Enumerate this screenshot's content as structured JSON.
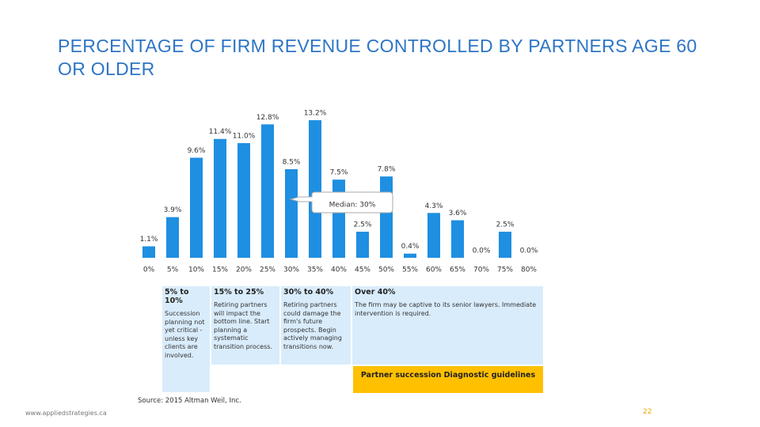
{
  "chart_data": {
    "type": "bar",
    "title": "PERCENTAGE OF FIRM REVENUE CONTROLLED BY PARTNERS AGE 60 OR OLDER",
    "categories": [
      "0%",
      "5%",
      "10%",
      "15%",
      "20%",
      "25%",
      "30%",
      "35%",
      "40%",
      "45%",
      "50%",
      "55%",
      "60%",
      "65%",
      "70%",
      "75%",
      "80%"
    ],
    "values": [
      1.1,
      3.9,
      9.6,
      11.4,
      11.0,
      12.8,
      8.5,
      13.2,
      7.5,
      2.5,
      7.8,
      0.4,
      4.3,
      3.6,
      0.0,
      2.5,
      0.0
    ],
    "value_labels": [
      "1.1%",
      "3.9%",
      "9.6%",
      "11.4%",
      "11.0%",
      "12.8%",
      "8.5%",
      "13.2%",
      "7.5%",
      "2.5%",
      "7.8%",
      "0.4%",
      "4.3%",
      "3.6%",
      "0.0%",
      "2.5%",
      "0.0%"
    ],
    "color": "#1e8fe1",
    "annotation": "Median: 30%"
  },
  "guidelines": {
    "columns": [
      {
        "heading": "5% to 10%",
        "text": "Succession planning not yet critical - unless key clients are involved."
      },
      {
        "heading": "15% to 25%",
        "text": "Retiring partners will impact the bottom line. Start planning a systematic transition process."
      },
      {
        "heading": "30% to 40%",
        "text": "Retiring partners could damage the firm's future prospects. Begin actively managing transitions now."
      },
      {
        "heading": "Over 40%",
        "text": "The firm may be captive to its senior lawyers. Immediate intervention is required."
      }
    ],
    "footer": "Partner succession Diagnostic guidelines"
  },
  "source": "Source: 2015 Altman Weil, Inc.",
  "website": "www.appliedstrategies.ca",
  "page_number": "22"
}
